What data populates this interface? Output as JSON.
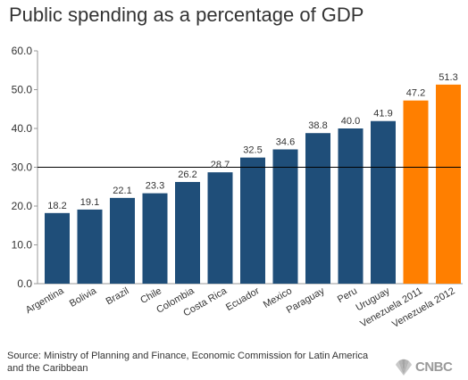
{
  "chart_data": {
    "type": "bar",
    "title": "Public spending as a percentage of GDP",
    "categories": [
      "Argentina",
      "Bolivia",
      "Brazil",
      "Chile",
      "Colombia",
      "Costa Rica",
      "Ecuador",
      "Mexico",
      "Paraguay",
      "Peru",
      "Uruguay",
      "Venezuela 2011",
      "Venezuela 2012"
    ],
    "values": [
      18.2,
      19.1,
      22.1,
      23.3,
      26.2,
      28.7,
      32.5,
      34.6,
      38.8,
      40.0,
      41.9,
      47.2,
      51.3
    ],
    "value_labels": [
      "18.2",
      "19.1",
      "22.1",
      "23.3",
      "26.2",
      "28.7",
      "32.5",
      "34.6",
      "38.8",
      "40.0",
      "41.9",
      "47.2",
      "51.3"
    ],
    "colors": [
      "#1f4e79",
      "#1f4e79",
      "#1f4e79",
      "#1f4e79",
      "#1f4e79",
      "#1f4e79",
      "#1f4e79",
      "#1f4e79",
      "#1f4e79",
      "#1f4e79",
      "#1f4e79",
      "#ff7f00",
      "#ff7f00"
    ],
    "ylim": [
      0,
      60
    ],
    "yticks": [
      "0.0",
      "10.0",
      "20.0",
      "30.0",
      "40.0",
      "50.0",
      "60.0"
    ],
    "reference_line": 30,
    "grid": false,
    "xlabel": "",
    "ylabel": ""
  },
  "footer": {
    "source": "Source: Ministry of Planning and Finance, Economic Commission for Latin America and the Caribbean",
    "logo_text": "CNBC"
  }
}
